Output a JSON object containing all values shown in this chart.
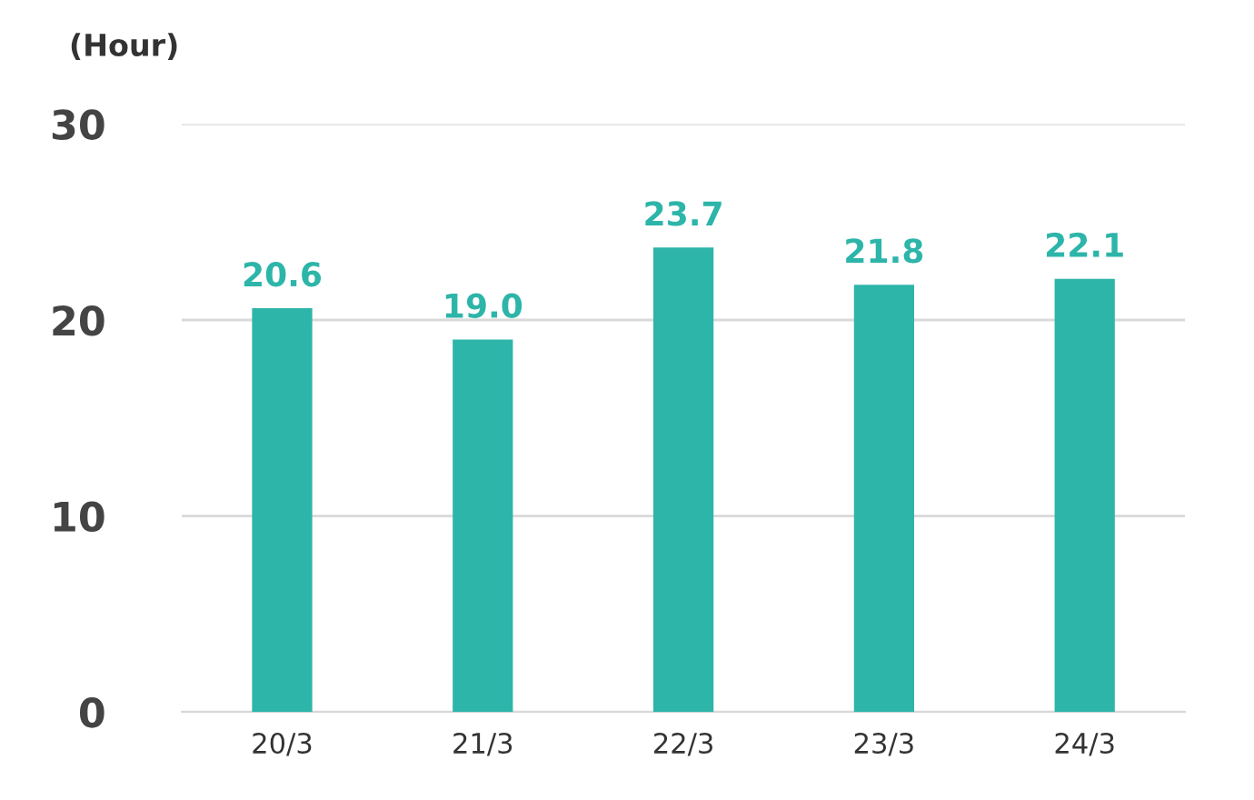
{
  "chart_data": {
    "type": "bar",
    "ylabel": "(Hour)",
    "categories": [
      "20/3",
      "21/3",
      "22/3",
      "23/3",
      "24/3"
    ],
    "values": [
      20.6,
      19.0,
      23.7,
      21.8,
      22.1
    ],
    "value_labels": [
      "20.6",
      "19.0",
      "23.7",
      "21.8",
      "22.1"
    ],
    "color": "#2db5a9",
    "ylim": [
      0,
      30
    ],
    "yticks": [
      0,
      10,
      20,
      30
    ],
    "grid": "y",
    "legend": false
  }
}
